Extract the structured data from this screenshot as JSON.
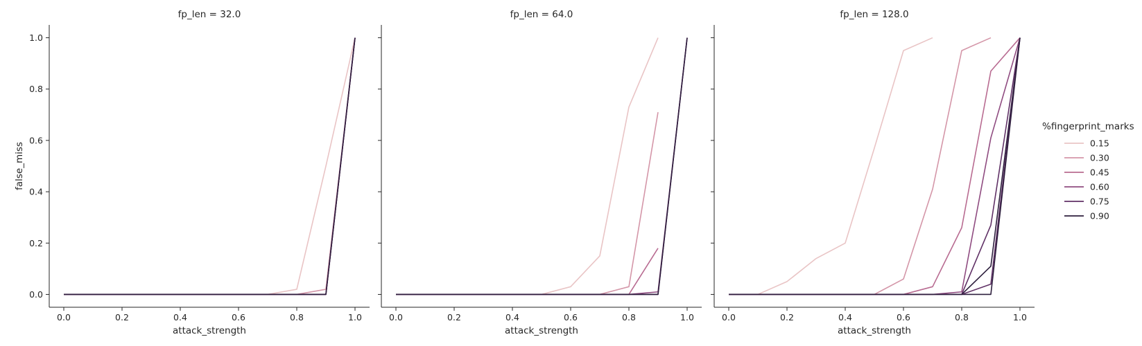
{
  "chart_data": {
    "type": "line",
    "xlabel": "attack_strength",
    "ylabel": "false_miss",
    "xlim": [
      -0.05,
      1.05
    ],
    "ylim": [
      -0.05,
      1.05
    ],
    "xticks": [
      "0.0",
      "0.2",
      "0.4",
      "0.6",
      "0.8",
      "1.0"
    ],
    "yticks": [
      "0.0",
      "0.2",
      "0.4",
      "0.6",
      "0.8",
      "1.0"
    ],
    "legend": {
      "title": "%fingerprint_marks",
      "placement": "right",
      "entries": [
        {
          "label": "0.15",
          "color": "#e9c4c5"
        },
        {
          "label": "0.30",
          "color": "#d496a8"
        },
        {
          "label": "0.45",
          "color": "#b86b91"
        },
        {
          "label": "0.60",
          "color": "#8f4b80"
        },
        {
          "label": "0.75",
          "color": "#603166"
        },
        {
          "label": "0.90",
          "color": "#2d1e3d"
        }
      ]
    },
    "panels": [
      {
        "title": "fp_len = 32.0",
        "series": [
          {
            "legend_index": 0,
            "x": [
              0.0,
              0.1,
              0.2,
              0.3,
              0.4,
              0.5,
              0.6,
              0.7,
              0.8,
              0.9,
              1.0
            ],
            "y": [
              0,
              0,
              0,
              0,
              0,
              0,
              0,
              0,
              0.02,
              0.5,
              1.0
            ]
          },
          {
            "legend_index": 1,
            "x": [
              0.0,
              0.1,
              0.2,
              0.3,
              0.4,
              0.5,
              0.6,
              0.7,
              0.8,
              0.9,
              1.0
            ],
            "y": [
              0,
              0,
              0,
              0,
              0,
              0,
              0,
              0,
              0,
              0.02,
              1.0
            ]
          },
          {
            "legend_index": 2,
            "x": [
              0.0,
              0.1,
              0.2,
              0.3,
              0.4,
              0.5,
              0.6,
              0.7,
              0.8,
              0.9,
              1.0
            ],
            "y": [
              0,
              0,
              0,
              0,
              0,
              0,
              0,
              0,
              0,
              0,
              1.0
            ]
          },
          {
            "legend_index": 3,
            "x": [
              0.0,
              0.1,
              0.2,
              0.3,
              0.4,
              0.5,
              0.6,
              0.7,
              0.8,
              0.9,
              1.0
            ],
            "y": [
              0,
              0,
              0,
              0,
              0,
              0,
              0,
              0,
              0,
              0,
              1.0
            ]
          },
          {
            "legend_index": 4,
            "x": [
              0.0,
              0.1,
              0.2,
              0.3,
              0.4,
              0.5,
              0.6,
              0.7,
              0.8,
              0.9,
              1.0
            ],
            "y": [
              0,
              0,
              0,
              0,
              0,
              0,
              0,
              0,
              0,
              0,
              1.0
            ]
          },
          {
            "legend_index": 5,
            "x": [
              0.0,
              0.1,
              0.2,
              0.3,
              0.4,
              0.5,
              0.6,
              0.7,
              0.8,
              0.9,
              1.0
            ],
            "y": [
              0,
              0,
              0,
              0,
              0,
              0,
              0,
              0,
              0,
              0,
              1.0
            ]
          }
        ]
      },
      {
        "title": "fp_len = 64.0",
        "series": [
          {
            "legend_index": 0,
            "x": [
              0.0,
              0.1,
              0.2,
              0.3,
              0.4,
              0.5,
              0.6,
              0.7,
              0.8,
              0.9
            ],
            "y": [
              0,
              0,
              0,
              0,
              0,
              0,
              0.03,
              0.15,
              0.73,
              1.0
            ]
          },
          {
            "legend_index": 1,
            "x": [
              0.0,
              0.1,
              0.2,
              0.3,
              0.4,
              0.5,
              0.6,
              0.7,
              0.8,
              0.9
            ],
            "y": [
              0,
              0,
              0,
              0,
              0,
              0,
              0,
              0,
              0.03,
              0.71
            ]
          },
          {
            "legend_index": 2,
            "x": [
              0.0,
              0.1,
              0.2,
              0.3,
              0.4,
              0.5,
              0.6,
              0.7,
              0.8,
              0.9
            ],
            "y": [
              0,
              0,
              0,
              0,
              0,
              0,
              0,
              0,
              0,
              0.18
            ]
          },
          {
            "legend_index": 3,
            "x": [
              0.0,
              0.1,
              0.2,
              0.3,
              0.4,
              0.5,
              0.6,
              0.7,
              0.8,
              0.9,
              1.0
            ],
            "y": [
              0,
              0,
              0,
              0,
              0,
              0,
              0,
              0,
              0,
              0.01,
              1.0
            ]
          },
          {
            "legend_index": 4,
            "x": [
              0.0,
              0.1,
              0.2,
              0.3,
              0.4,
              0.5,
              0.6,
              0.7,
              0.8,
              0.9,
              1.0
            ],
            "y": [
              0,
              0,
              0,
              0,
              0,
              0,
              0,
              0,
              0,
              0,
              1.0
            ]
          },
          {
            "legend_index": 5,
            "x": [
              0.0,
              0.1,
              0.2,
              0.3,
              0.4,
              0.5,
              0.6,
              0.7,
              0.8,
              0.9,
              1.0
            ],
            "y": [
              0,
              0,
              0,
              0,
              0,
              0,
              0,
              0,
              0,
              0,
              1.0
            ]
          }
        ]
      },
      {
        "title": "fp_len = 128.0",
        "series": [
          {
            "legend_index": 0,
            "x": [
              0.0,
              0.1,
              0.2,
              0.3,
              0.4,
              0.5,
              0.6,
              0.7
            ],
            "y": [
              0,
              0,
              0.05,
              0.14,
              0.2,
              0.57,
              0.95,
              1.0
            ]
          },
          {
            "legend_index": 1,
            "x": [
              0.0,
              0.1,
              0.2,
              0.3,
              0.4,
              0.5,
              0.6,
              0.7,
              0.8,
              0.9
            ],
            "y": [
              0,
              0,
              0,
              0,
              0,
              0,
              0.06,
              0.41,
              0.95,
              1.0
            ]
          },
          {
            "legend_index": 2,
            "x": [
              0.0,
              0.1,
              0.2,
              0.3,
              0.4,
              0.5,
              0.6,
              0.7,
              0.8,
              0.9,
              1.0
            ],
            "y": [
              0,
              0,
              0,
              0,
              0,
              0,
              0,
              0.03,
              0.26,
              0.87,
              1.0
            ]
          },
          {
            "legend_index": 3,
            "x": [
              0.0,
              0.1,
              0.2,
              0.3,
              0.4,
              0.5,
              0.6,
              0.7,
              0.8,
              0.9,
              1.0
            ],
            "y": [
              0,
              0,
              0,
              0,
              0,
              0,
              0,
              0,
              0.01,
              0.61,
              1.0
            ]
          },
          {
            "legend_index": 4,
            "x": [
              0.0,
              0.1,
              0.2,
              0.3,
              0.4,
              0.5,
              0.6,
              0.7,
              0.8,
              0.9,
              1.0
            ],
            "y": [
              0,
              0,
              0,
              0,
              0,
              0,
              0,
              0,
              0,
              0.27,
              1.0
            ]
          },
          {
            "legend_index": 5,
            "x": [
              0.0,
              0.1,
              0.2,
              0.3,
              0.4,
              0.5,
              0.6,
              0.7,
              0.8,
              0.9,
              1.0
            ],
            "y": [
              0,
              0,
              0,
              0,
              0,
              0,
              0,
              0,
              0,
              0.11,
              1.0
            ]
          },
          {
            "legend_index": 4,
            "x": [
              0.8,
              0.9,
              1.0
            ],
            "y": [
              0,
              0.04,
              1.0
            ]
          },
          {
            "legend_index": 5,
            "x": [
              0.8,
              0.9,
              1.0
            ],
            "y": [
              0,
              0.0,
              1.0
            ]
          }
        ]
      }
    ]
  }
}
